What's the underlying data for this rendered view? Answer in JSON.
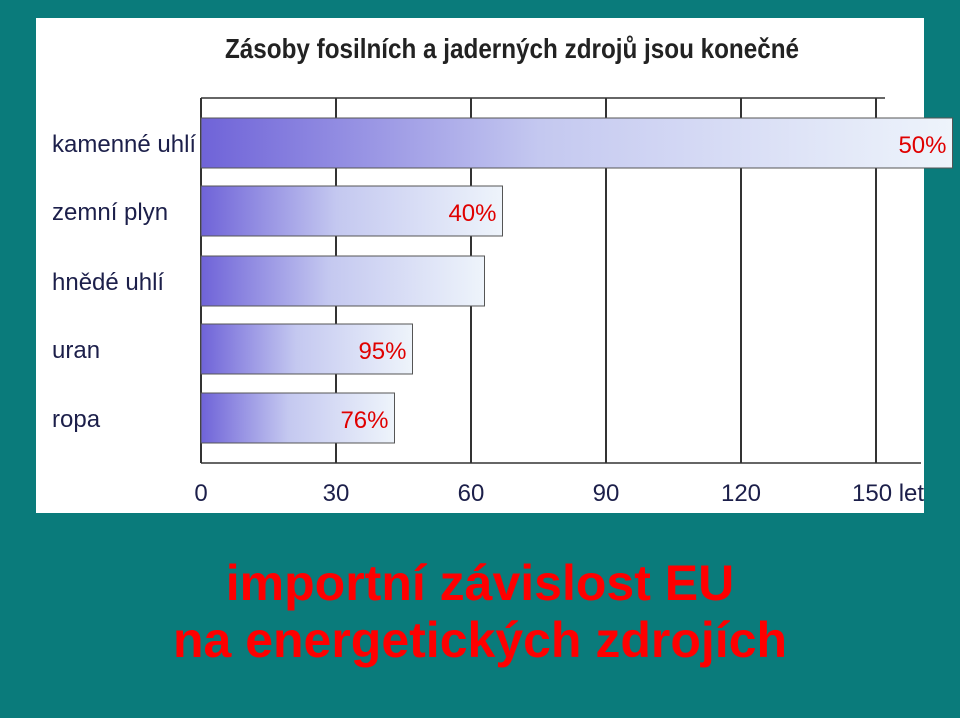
{
  "chart_data": {
    "type": "bar",
    "orientation": "horizontal",
    "title": "Zásoby fosilních a jaderných zdrojů jsou konečné",
    "categories": [
      "kamenné uhlí",
      "zemní plyn",
      "hnědé uhlí",
      "uran",
      "ropa"
    ],
    "values": [
      167,
      67,
      63,
      47,
      43
    ],
    "bar_labels": [
      "50%",
      "40%",
      "",
      "95%",
      "76%"
    ],
    "xlim": [
      0,
      160
    ],
    "xticks": [
      "0",
      "30",
      "60",
      "90",
      "120",
      "150 let"
    ],
    "xtick_values": [
      0,
      30,
      60,
      90,
      120,
      150
    ],
    "grid": true,
    "colors": {
      "bar_start": "#6f63d8",
      "bar_end": "#eef4fb",
      "label": "#e00000",
      "grid": "#333333"
    }
  },
  "caption": {
    "line1": "importní závislost EU",
    "line2": "na energetických zdrojích"
  }
}
